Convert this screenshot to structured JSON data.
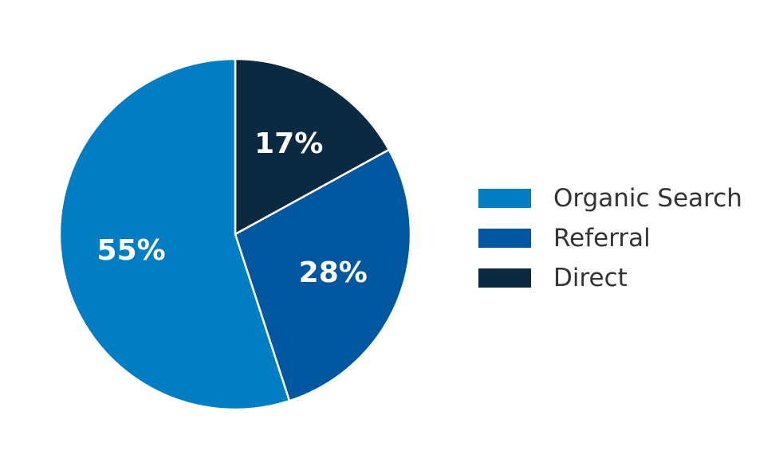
{
  "chart_data": {
    "type": "pie",
    "slices": [
      {
        "label": "Organic Search",
        "value": 55,
        "value_label": "55%",
        "color": "#007DC3"
      },
      {
        "label": "Referral",
        "value": 28,
        "value_label": "28%",
        "color": "#0057A0"
      },
      {
        "label": "Direct",
        "value": 17,
        "value_label": "17%",
        "color": "#0B2A42"
      }
    ],
    "start_angle": "12 o'clock",
    "direction": "clockwise, drawn from last slice",
    "legend_position": "right"
  }
}
